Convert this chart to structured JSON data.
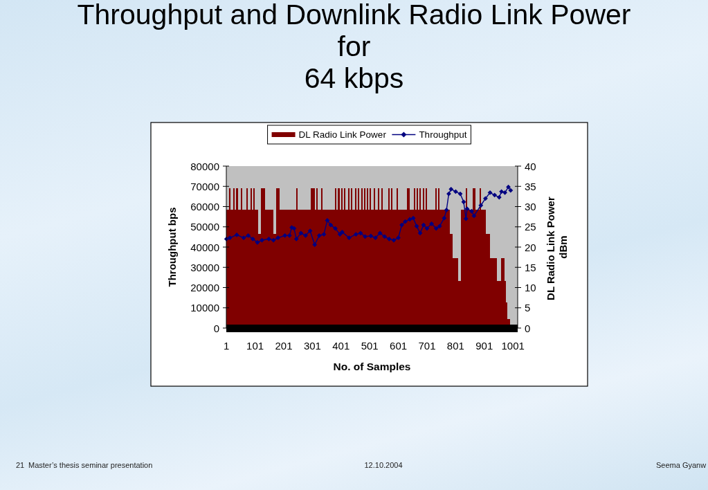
{
  "chart_data": {
    "type": "bar",
    "title": "Throughput and Downlink Radio Link Power\nfor\n64 kbps",
    "xlabel": "No. of Samples",
    "ylabel": "Throughput bps",
    "y2label": "DL Radio Link Power\ndBm",
    "xlim": [
      0.5,
      1017.5
    ],
    "xticks": [
      1,
      101,
      201,
      301,
      401,
      501,
      601,
      701,
      801,
      901,
      1001
    ],
    "ylim": [
      0,
      80000
    ],
    "yticks": [
      0,
      10000,
      20000,
      30000,
      40000,
      50000,
      60000,
      70000,
      80000
    ],
    "y2lim": [
      0,
      40
    ],
    "y2ticks": [
      0,
      5,
      10,
      15,
      20,
      25,
      30,
      35,
      40
    ],
    "legend": "top",
    "marker": "diamond",
    "annotations": [
      "21",
      "Master’s thesis seminar presentation",
      "12.10.2004",
      "Seema Gyanw"
    ],
    "series": [
      {
        "name": "DL Radio Link Power",
        "axis": "y2",
        "color": "#800000",
        "x": [
          3,
          8,
          13,
          18,
          23,
          28,
          33,
          38,
          43,
          48,
          53,
          58,
          63,
          68,
          73,
          78,
          83,
          88,
          93,
          98,
          103,
          108,
          113,
          118,
          123,
          128,
          133,
          138,
          143,
          148,
          153,
          158,
          163,
          168,
          173,
          178,
          183,
          188,
          193,
          198,
          203,
          208,
          213,
          218,
          223,
          228,
          233,
          238,
          243,
          248,
          253,
          258,
          263,
          268,
          273,
          278,
          283,
          288,
          293,
          298,
          303,
          308,
          313,
          318,
          323,
          328,
          333,
          338,
          343,
          348,
          353,
          358,
          363,
          368,
          373,
          378,
          383,
          388,
          393,
          398,
          403,
          408,
          413,
          418,
          423,
          428,
          433,
          438,
          443,
          448,
          453,
          458,
          463,
          468,
          473,
          478,
          483,
          488,
          493,
          498,
          503,
          508,
          513,
          518,
          523,
          528,
          533,
          538,
          543,
          548,
          553,
          558,
          563,
          568,
          573,
          578,
          583,
          588,
          593,
          598,
          603,
          608,
          613,
          618,
          623,
          628,
          633,
          638,
          643,
          648,
          653,
          658,
          663,
          668,
          673,
          678,
          683,
          688,
          693,
          698,
          703,
          708,
          713,
          718,
          723,
          728,
          733,
          738,
          743,
          748,
          753,
          758,
          763,
          768,
          773,
          778,
          783,
          788,
          793,
          798,
          803,
          808,
          813,
          818,
          823,
          828,
          833,
          838,
          843,
          848,
          853,
          858,
          863,
          868,
          873,
          878,
          883,
          888,
          893,
          898,
          903,
          908,
          913,
          918,
          923,
          928,
          933,
          938,
          943,
          948,
          953,
          958,
          963,
          968,
          973,
          978,
          983,
          988
        ],
        "values": [
          29.2,
          29.2,
          34.6,
          29.2,
          29.2,
          34.6,
          29.2,
          34.6,
          29.2,
          29.2,
          34.6,
          29.2,
          29.2,
          29.2,
          34.6,
          29.2,
          29.2,
          34.6,
          29.2,
          34.6,
          29.2,
          29.2,
          23.3,
          23.3,
          34.6,
          34.6,
          34.6,
          29.2,
          29.2,
          29.2,
          29.2,
          29.2,
          29.2,
          23.3,
          23.3,
          34.6,
          34.6,
          29.2,
          29.2,
          29.2,
          29.2,
          29.2,
          29.2,
          29.2,
          29.2,
          29.2,
          29.2,
          29.2,
          29.2,
          34.6,
          29.2,
          29.2,
          29.2,
          29.2,
          29.2,
          29.2,
          29.2,
          29.2,
          29.2,
          34.6,
          34.6,
          34.6,
          29.2,
          34.6,
          29.2,
          29.2,
          34.6,
          29.2,
          29.2,
          29.2,
          29.2,
          29.2,
          29.2,
          29.2,
          29.2,
          29.2,
          34.6,
          29.2,
          34.6,
          29.2,
          34.6,
          29.2,
          34.6,
          29.2,
          29.2,
          34.6,
          29.2,
          34.6,
          29.2,
          29.2,
          34.6,
          29.2,
          34.6,
          29.2,
          34.6,
          29.2,
          34.6,
          29.2,
          34.6,
          29.2,
          34.6,
          29.2,
          29.2,
          34.6,
          29.2,
          29.2,
          34.6,
          29.2,
          34.6,
          29.2,
          29.2,
          29.2,
          29.2,
          34.6,
          29.2,
          34.6,
          29.2,
          29.2,
          29.2,
          34.6,
          29.2,
          29.2,
          29.2,
          29.2,
          29.2,
          29.2,
          34.6,
          34.6,
          29.2,
          29.2,
          29.2,
          34.6,
          29.2,
          34.6,
          29.2,
          34.6,
          29.2,
          34.6,
          29.2,
          34.6,
          29.2,
          29.2,
          29.2,
          29.2,
          29.2,
          29.2,
          34.6,
          29.2,
          34.6,
          29.2,
          29.2,
          29.2,
          29.2,
          29.2,
          29.2,
          29.2,
          23.3,
          23.3,
          17.3,
          17.3,
          17.3,
          17.3,
          11.7,
          11.7,
          29.2,
          29.2,
          29.2,
          34.6,
          29.2,
          29.2,
          29.2,
          29.2,
          34.6,
          34.6,
          29.2,
          29.2,
          29.2,
          34.6,
          29.2,
          29.2,
          29.2,
          23.3,
          23.3,
          23.3,
          17.3,
          17.3,
          17.3,
          17.3,
          17.3,
          11.7,
          11.7,
          11.7,
          17.3,
          17.3,
          11.7,
          6.3,
          2.2,
          2.2
        ]
      },
      {
        "name": "Throughput",
        "type": "line",
        "color": "#000080",
        "x": [
          1,
          13,
          37,
          61,
          77,
          93,
          109,
          125,
          149,
          165,
          181,
          205,
          221,
          229,
          237,
          245,
          261,
          277,
          293,
          309,
          325,
          341,
          353,
          365,
          381,
          397,
          405,
          429,
          453,
          469,
          485,
          505,
          521,
          537,
          553,
          569,
          585,
          601,
          613,
          625,
          641,
          653,
          665,
          677,
          689,
          701,
          717,
          733,
          745,
          761,
          769,
          777,
          785,
          801,
          817,
          829,
          837,
          841,
          857,
          865,
          889,
          905,
          921,
          937,
          953,
          961,
          973,
          985,
          993
        ],
        "values": [
          44000,
          44600,
          46000,
          44600,
          45700,
          44000,
          42300,
          43400,
          44000,
          43400,
          44600,
          45700,
          45700,
          49700,
          49200,
          44000,
          46900,
          45700,
          48000,
          41200,
          45700,
          46300,
          53200,
          50900,
          49200,
          46300,
          47400,
          44600,
          46300,
          46900,
          45200,
          45500,
          44600,
          46900,
          45200,
          44000,
          43400,
          44600,
          50900,
          52600,
          53700,
          54300,
          50300,
          46900,
          50900,
          49200,
          51500,
          49200,
          50300,
          54300,
          58300,
          66300,
          68600,
          67400,
          66300,
          62300,
          54000,
          58900,
          57700,
          55400,
          60600,
          64000,
          66900,
          65700,
          64600,
          67400,
          66900,
          69700,
          68000
        ]
      }
    ]
  }
}
